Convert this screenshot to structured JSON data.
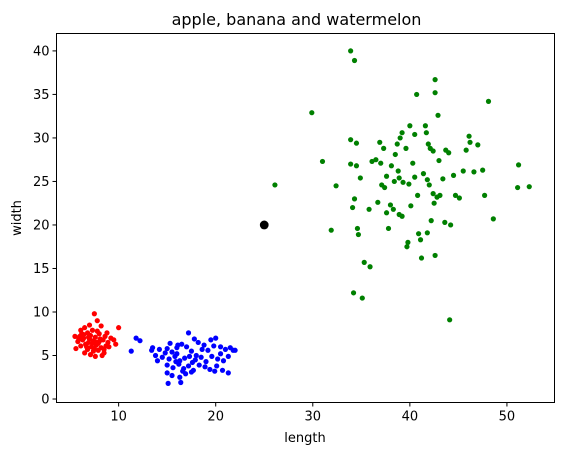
{
  "chart_data": {
    "type": "scatter",
    "title": "apple, banana and watermelon",
    "xlabel": "length",
    "ylabel": "width",
    "xlim": [
      3.6,
      54.9
    ],
    "ylim": [
      -0.4,
      42
    ],
    "xticks": [
      10,
      20,
      30,
      40,
      50
    ],
    "yticks": [
      0,
      5,
      10,
      15,
      20,
      25,
      30,
      35,
      40
    ],
    "grid": false,
    "series": [
      {
        "color": "#ff0000",
        "points": [
          [
            6.1,
            7.9
          ],
          [
            6.5,
            8.2
          ],
          [
            7.0,
            8.5
          ],
          [
            7.5,
            9.8
          ],
          [
            7.8,
            9.0
          ],
          [
            8.2,
            8.4
          ],
          [
            6.8,
            7.6
          ],
          [
            7.3,
            7.9
          ],
          [
            6.0,
            7.2
          ],
          [
            6.4,
            7.0
          ],
          [
            7.1,
            7.3
          ],
          [
            7.6,
            7.1
          ],
          [
            8.0,
            7.5
          ],
          [
            8.6,
            7.2
          ],
          [
            9.2,
            7.0
          ],
          [
            5.8,
            6.6
          ],
          [
            6.3,
            6.8
          ],
          [
            6.9,
            6.5
          ],
          [
            7.4,
            6.7
          ],
          [
            7.9,
            6.4
          ],
          [
            8.4,
            6.8
          ],
          [
            8.9,
            6.5
          ],
          [
            9.5,
            6.8
          ],
          [
            6.1,
            6.1
          ],
          [
            6.6,
            6.3
          ],
          [
            7.2,
            6.0
          ],
          [
            7.7,
            6.2
          ],
          [
            8.2,
            5.9
          ],
          [
            8.7,
            6.1
          ],
          [
            5.6,
            5.8
          ],
          [
            6.8,
            5.7
          ],
          [
            7.4,
            5.5
          ],
          [
            7.9,
            5.6
          ],
          [
            8.5,
            5.3
          ],
          [
            7.1,
            5.1
          ],
          [
            7.6,
            4.9
          ],
          [
            8.3,
            5.0
          ],
          [
            6.5,
            5.3
          ],
          [
            10.0,
            8.2
          ],
          [
            5.5,
            7.2
          ],
          [
            6.2,
            7.5
          ],
          [
            7.0,
            6.9
          ],
          [
            8.1,
            6.9
          ],
          [
            8.8,
            7.6
          ],
          [
            9.7,
            6.3
          ],
          [
            5.9,
            6.9
          ],
          [
            7.3,
            6.4
          ],
          [
            6.7,
            6.0
          ],
          [
            8.0,
            6.6
          ],
          [
            7.5,
            5.8
          ],
          [
            6.4,
            7.4
          ],
          [
            8.5,
            5.7
          ],
          [
            7.8,
            7.8
          ],
          [
            9.0,
            6.0
          ],
          [
            6.9,
            7.1
          ],
          [
            7.7,
            6.5
          ]
        ]
      },
      {
        "color": "#0000ff",
        "points": [
          [
            11.8,
            7.0
          ],
          [
            12.2,
            6.7
          ],
          [
            13.5,
            5.9
          ],
          [
            14.2,
            5.7
          ],
          [
            15.0,
            5.8
          ],
          [
            15.5,
            5.4
          ],
          [
            16.0,
            5.9
          ],
          [
            16.5,
            6.3
          ],
          [
            17.0,
            6.0
          ],
          [
            17.2,
            7.6
          ],
          [
            17.8,
            6.9
          ],
          [
            18.2,
            6.5
          ],
          [
            18.8,
            6.2
          ],
          [
            19.5,
            6.8
          ],
          [
            20.0,
            7.0
          ],
          [
            20.5,
            6.0
          ],
          [
            21.0,
            5.7
          ],
          [
            21.5,
            5.9
          ],
          [
            22.0,
            5.6
          ],
          [
            13.8,
            5.0
          ],
          [
            14.5,
            4.8
          ],
          [
            15.2,
            4.6
          ],
          [
            15.8,
            4.9
          ],
          [
            16.3,
            4.4
          ],
          [
            16.8,
            4.7
          ],
          [
            17.3,
            4.9
          ],
          [
            17.9,
            4.5
          ],
          [
            18.5,
            4.8
          ],
          [
            19.0,
            4.3
          ],
          [
            19.6,
            4.9
          ],
          [
            20.2,
            4.6
          ],
          [
            20.8,
            4.4
          ],
          [
            21.3,
            4.9
          ],
          [
            15.0,
            3.9
          ],
          [
            15.6,
            3.6
          ],
          [
            16.2,
            4.0
          ],
          [
            16.7,
            3.5
          ],
          [
            17.2,
            3.8
          ],
          [
            17.7,
            3.3
          ],
          [
            18.3,
            3.9
          ],
          [
            18.9,
            3.7
          ],
          [
            19.4,
            3.4
          ],
          [
            20.1,
            3.8
          ],
          [
            20.7,
            3.3
          ],
          [
            21.3,
            3.0
          ],
          [
            15.0,
            3.0
          ],
          [
            15.5,
            2.7
          ],
          [
            16.3,
            2.5
          ],
          [
            16.9,
            2.9
          ],
          [
            17.5,
            3.1
          ],
          [
            15.1,
            1.8
          ],
          [
            16.4,
            1.9
          ],
          [
            11.3,
            5.5
          ],
          [
            14.8,
            5.3
          ],
          [
            17.5,
            5.5
          ],
          [
            19.2,
            5.6
          ],
          [
            16.0,
            5.2
          ],
          [
            18.0,
            5.0
          ],
          [
            20.5,
            5.2
          ],
          [
            14.0,
            4.4
          ],
          [
            16.6,
            3.2
          ],
          [
            19.8,
            6.1
          ],
          [
            15.3,
            6.4
          ],
          [
            17.6,
            4.2
          ],
          [
            18.6,
            5.7
          ],
          [
            15.9,
            4.3
          ],
          [
            21.8,
            5.6
          ],
          [
            13.4,
            5.6
          ],
          [
            19.9,
            3.2
          ],
          [
            16.1,
            6.2
          ]
        ]
      },
      {
        "color": "#008000",
        "points": [
          [
            26.1,
            24.6
          ],
          [
            29.9,
            32.9
          ],
          [
            31.0,
            27.3
          ],
          [
            31.9,
            19.4
          ],
          [
            32.4,
            24.5
          ],
          [
            33.9,
            40.0
          ],
          [
            34.3,
            38.9
          ],
          [
            33.9,
            29.8
          ],
          [
            34.5,
            29.4
          ],
          [
            33.9,
            27.0
          ],
          [
            34.5,
            26.8
          ],
          [
            34.9,
            25.4
          ],
          [
            34.3,
            23.0
          ],
          [
            34.1,
            22.0
          ],
          [
            34.6,
            19.6
          ],
          [
            34.7,
            18.9
          ],
          [
            35.3,
            15.7
          ],
          [
            35.9,
            15.2
          ],
          [
            34.2,
            12.2
          ],
          [
            35.1,
            11.6
          ],
          [
            35.8,
            21.8
          ],
          [
            36.1,
            27.3
          ],
          [
            36.5,
            27.5
          ],
          [
            36.9,
            29.5
          ],
          [
            37.3,
            28.8
          ],
          [
            37.6,
            25.6
          ],
          [
            37.1,
            24.6
          ],
          [
            37.4,
            24.3
          ],
          [
            38.0,
            22.3
          ],
          [
            37.6,
            21.4
          ],
          [
            37.8,
            19.6
          ],
          [
            38.3,
            21.8
          ],
          [
            38.5,
            28.1
          ],
          [
            38.7,
            29.3
          ],
          [
            39.0,
            30.0
          ],
          [
            39.2,
            30.6
          ],
          [
            39.6,
            28.8
          ],
          [
            38.8,
            26.2
          ],
          [
            38.9,
            25.4
          ],
          [
            38.4,
            25.0
          ],
          [
            39.3,
            24.9
          ],
          [
            38.9,
            21.2
          ],
          [
            39.2,
            21.0
          ],
          [
            39.8,
            18.0
          ],
          [
            39.7,
            17.5
          ],
          [
            40.0,
            31.4
          ],
          [
            40.5,
            30.4
          ],
          [
            40.5,
            25.5
          ],
          [
            40.1,
            22.2
          ],
          [
            40.9,
            19.0
          ],
          [
            41.1,
            18.3
          ],
          [
            40.7,
            35.0
          ],
          [
            41.6,
            31.4
          ],
          [
            41.7,
            30.6
          ],
          [
            42.1,
            28.8
          ],
          [
            42.4,
            28.5
          ],
          [
            42.6,
            35.2
          ],
          [
            42.6,
            36.7
          ],
          [
            42.9,
            32.6
          ],
          [
            41.4,
            25.9
          ],
          [
            41.8,
            25.2
          ],
          [
            42.0,
            24.6
          ],
          [
            42.4,
            23.6
          ],
          [
            42.8,
            23.2
          ],
          [
            43.1,
            23.4
          ],
          [
            42.5,
            22.5
          ],
          [
            42.2,
            20.5
          ],
          [
            41.8,
            19.1
          ],
          [
            42.6,
            16.5
          ],
          [
            41.2,
            16.2
          ],
          [
            43.7,
            28.6
          ],
          [
            43.4,
            25.3
          ],
          [
            43.6,
            20.3
          ],
          [
            44.2,
            20.0
          ],
          [
            44.5,
            25.7
          ],
          [
            44.7,
            23.4
          ],
          [
            45.1,
            23.1
          ],
          [
            45.5,
            26.2
          ],
          [
            45.8,
            28.6
          ],
          [
            46.2,
            29.5
          ],
          [
            46.1,
            30.2
          ],
          [
            46.6,
            26.1
          ],
          [
            47.0,
            29.2
          ],
          [
            47.5,
            26.3
          ],
          [
            47.7,
            23.4
          ],
          [
            48.1,
            34.2
          ],
          [
            48.6,
            20.7
          ],
          [
            51.2,
            26.9
          ],
          [
            51.1,
            24.3
          ],
          [
            52.3,
            24.4
          ],
          [
            44.1,
            9.1
          ],
          [
            39.9,
            24.7
          ],
          [
            36.7,
            22.6
          ],
          [
            40.3,
            27.1
          ],
          [
            41.9,
            29.3
          ],
          [
            38.1,
            26.8
          ],
          [
            43.0,
            27.4
          ],
          [
            37.0,
            27.1
          ],
          [
            44.0,
            28.3
          ],
          [
            40.8,
            23.4
          ]
        ]
      }
    ],
    "highlight_point": {
      "x": 25,
      "y": 20,
      "color": "#000000"
    }
  }
}
